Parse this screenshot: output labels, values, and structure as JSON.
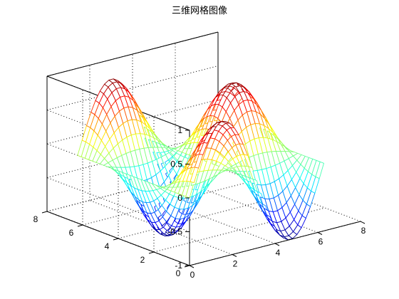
{
  "chart_data": {
    "type": "mesh",
    "title": "三维网格图像",
    "function": "z = sin(x) * cos(y)",
    "xlim": [
      0,
      8
    ],
    "ylim": [
      0,
      8
    ],
    "zlim": [
      -1,
      1
    ],
    "x_domain": [
      0,
      6.283
    ],
    "y_domain": [
      0,
      6.283
    ],
    "grid_lines": 30,
    "colormap": "jet",
    "xticks": [
      "0",
      "2",
      "4",
      "6",
      "8"
    ],
    "yticks": [
      "0",
      "2",
      "4",
      "6",
      "8"
    ],
    "zticks": [
      "-1",
      "-0.5",
      "0",
      "0.5",
      "1"
    ],
    "grid": true,
    "box": true
  }
}
